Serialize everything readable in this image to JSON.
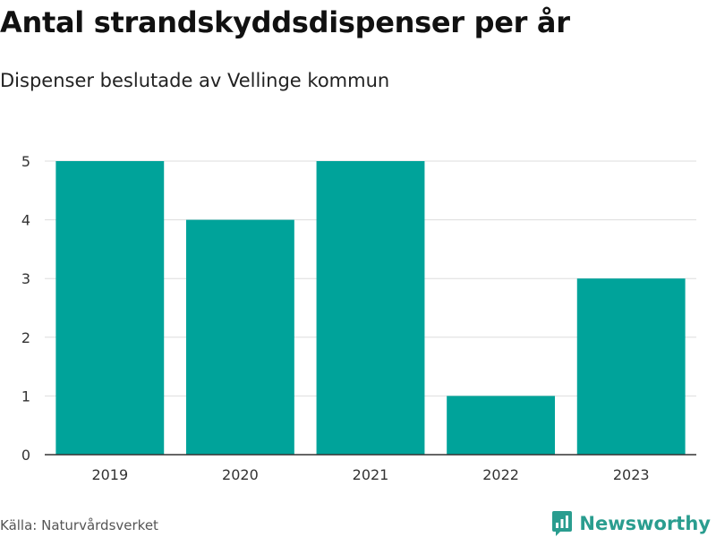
{
  "header": {
    "title": "Antal strandskyddsdispenser per år",
    "subtitle": "Dispenser beslutade av Vellinge kommun"
  },
  "footer": {
    "source": "Källa: Naturvårdsverket",
    "brand": "Newsworthy",
    "brand_color": "#2a9d8f"
  },
  "chart_data": {
    "type": "bar",
    "title": "Antal strandskyddsdispenser per år",
    "subtitle": "Dispenser beslutade av Vellinge kommun",
    "categories": [
      "2019",
      "2020",
      "2021",
      "2022",
      "2023"
    ],
    "values": [
      5,
      4,
      5,
      1,
      3
    ],
    "xlabel": "",
    "ylabel": "",
    "ylim": [
      0,
      5
    ],
    "yticks": [
      0,
      1,
      2,
      3,
      4,
      5
    ],
    "grid": true,
    "bar_color": "#00a39a"
  }
}
